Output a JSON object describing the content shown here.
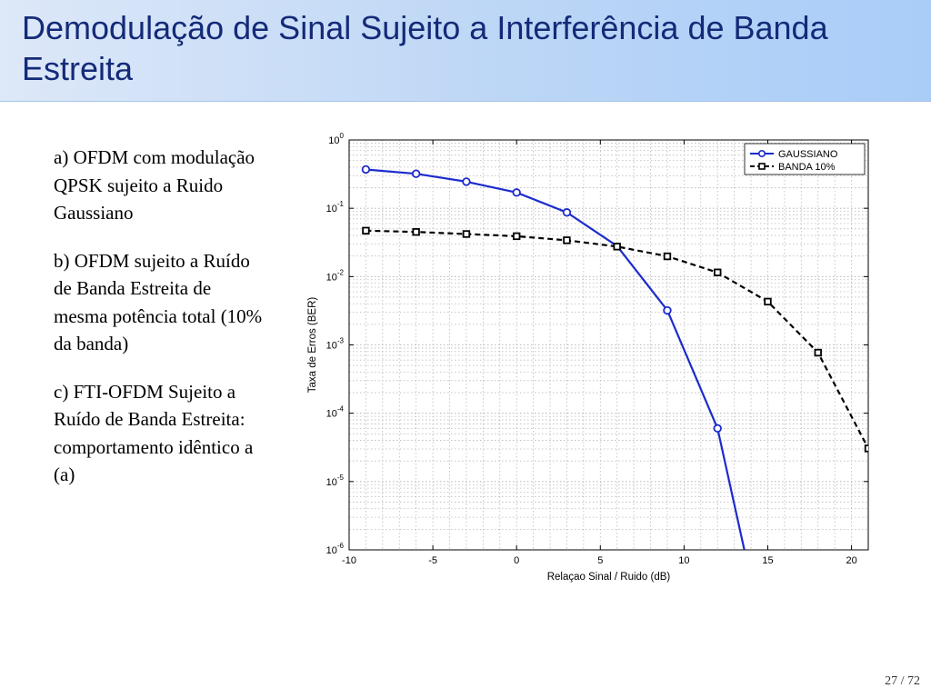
{
  "slide": {
    "title": "Demodulação de Sinal Sujeito a Interferência de Banda Estreita",
    "paragraphs": [
      "a) OFDM com modulação QPSK sujeito a Ruido Gaussiano",
      "b) OFDM sujeito a Ruído de Banda Estreita de mesma potência total (10% da banda)",
      "c) FTI-OFDM Sujeito a Ruído de Banda Estreita: comportamento idêntico a (a)"
    ],
    "page_number": "27 / 72"
  },
  "chart_data": {
    "type": "line",
    "title": "",
    "xlabel": "Relaçao Sinal / Ruido (dB)",
    "ylabel": "Taxa de Erros (BER)",
    "xlim": [
      -10,
      21
    ],
    "ylim": [
      1e-06,
      1
    ],
    "y_scale": "log",
    "x_ticks": [
      -10,
      -5,
      0,
      5,
      10,
      15,
      20
    ],
    "x_tick_labels": [
      "-10",
      "-5",
      "0",
      "5",
      "10",
      "15",
      "20"
    ],
    "y_ticks": [
      {
        "value": 1,
        "base": "10",
        "exp": "0"
      },
      {
        "value": 0.1,
        "base": "10",
        "exp": "-1"
      },
      {
        "value": 0.01,
        "base": "10",
        "exp": "-2"
      },
      {
        "value": 0.001,
        "base": "10",
        "exp": "-3"
      },
      {
        "value": 0.0001,
        "base": "10",
        "exp": "-4"
      },
      {
        "value": 1e-05,
        "base": "10",
        "exp": "-5"
      },
      {
        "value": 1e-06,
        "base": "10",
        "exp": "-6"
      }
    ],
    "grid": true,
    "legend_position": "top-right",
    "series": [
      {
        "name": "GAUSSIANO",
        "color": "#1c2bcc",
        "marker": "circle",
        "dash": "solid",
        "points": [
          {
            "x": -9,
            "y": 0.37
          },
          {
            "x": -6,
            "y": 0.32
          },
          {
            "x": -3,
            "y": 0.245
          },
          {
            "x": 0,
            "y": 0.17
          },
          {
            "x": 3,
            "y": 0.087
          },
          {
            "x": 6,
            "y": 0.028
          },
          {
            "x": 9,
            "y": 0.0032
          },
          {
            "x": 12,
            "y": 6e-05
          },
          {
            "x": 13.6,
            "y": 1e-06
          }
        ],
        "marker_count": 7,
        "marker_indices": [
          0,
          1,
          2,
          3,
          4,
          6,
          7
        ]
      },
      {
        "name": "BANDA 10%",
        "color": "#000000",
        "marker": "square",
        "dash": "dashed",
        "points": [
          {
            "x": -9,
            "y": 0.047
          },
          {
            "x": -6,
            "y": 0.045
          },
          {
            "x": -3,
            "y": 0.042
          },
          {
            "x": 0,
            "y": 0.039
          },
          {
            "x": 3,
            "y": 0.034
          },
          {
            "x": 6,
            "y": 0.0275
          },
          {
            "x": 9,
            "y": 0.0198
          },
          {
            "x": 12,
            "y": 0.0115
          },
          {
            "x": 15,
            "y": 0.0043
          },
          {
            "x": 18,
            "y": 0.00077
          },
          {
            "x": 21,
            "y": 3.05e-05
          }
        ]
      }
    ]
  }
}
